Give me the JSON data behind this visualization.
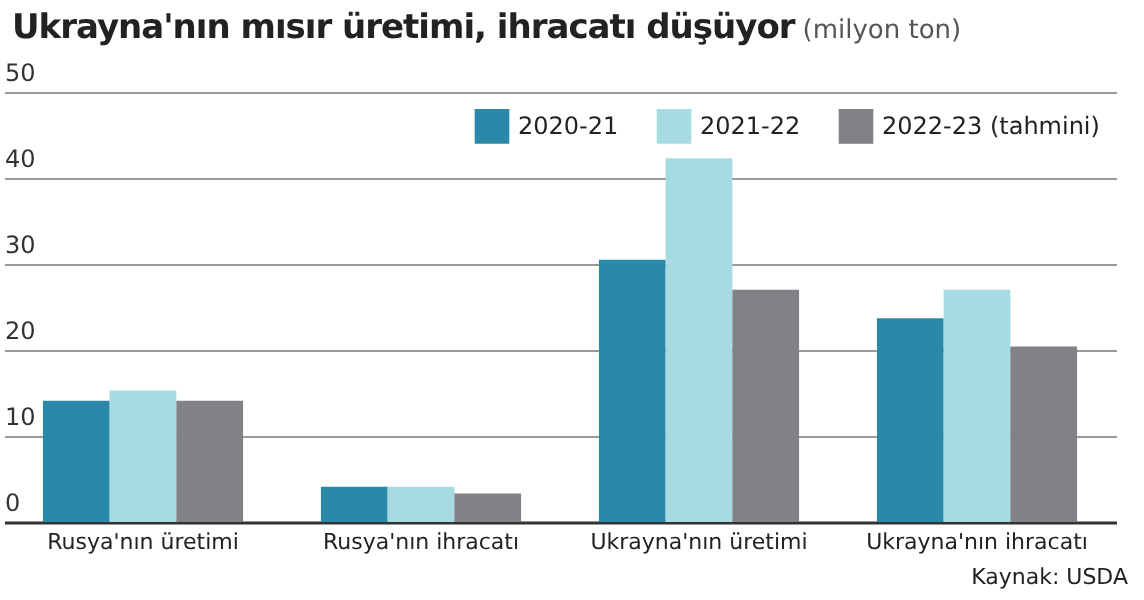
{
  "chart_data": {
    "type": "bar",
    "title": "Ukrayna'nın mısır üretimi, ihracatı düşüyor",
    "subtitle": "(milyon ton)",
    "categories": [
      "Rusya'nın üretimi",
      "Rusya'nın ihracatı",
      "Ukrayna'nın üretimi",
      "Ukrayna'nın ihracatı"
    ],
    "series": [
      {
        "name": "2020-21",
        "color": "#2a88a8",
        "values": [
          14.1,
          4.1,
          30.5,
          23.7
        ]
      },
      {
        "name": "2021-22",
        "color": "#a6dbe2",
        "values": [
          15.3,
          4.1,
          42.3,
          27.0
        ]
      },
      {
        "name": "2022-23 (tahmini)",
        "color": "#808285",
        "values": [
          14.1,
          3.3,
          27.0,
          20.4
        ]
      }
    ],
    "ylim": [
      0,
      50
    ],
    "yticks": [
      0,
      10,
      20,
      30,
      40,
      50
    ],
    "grid": "y",
    "legend": "top right",
    "annotations": [
      "Kaynak: USDA"
    ]
  }
}
